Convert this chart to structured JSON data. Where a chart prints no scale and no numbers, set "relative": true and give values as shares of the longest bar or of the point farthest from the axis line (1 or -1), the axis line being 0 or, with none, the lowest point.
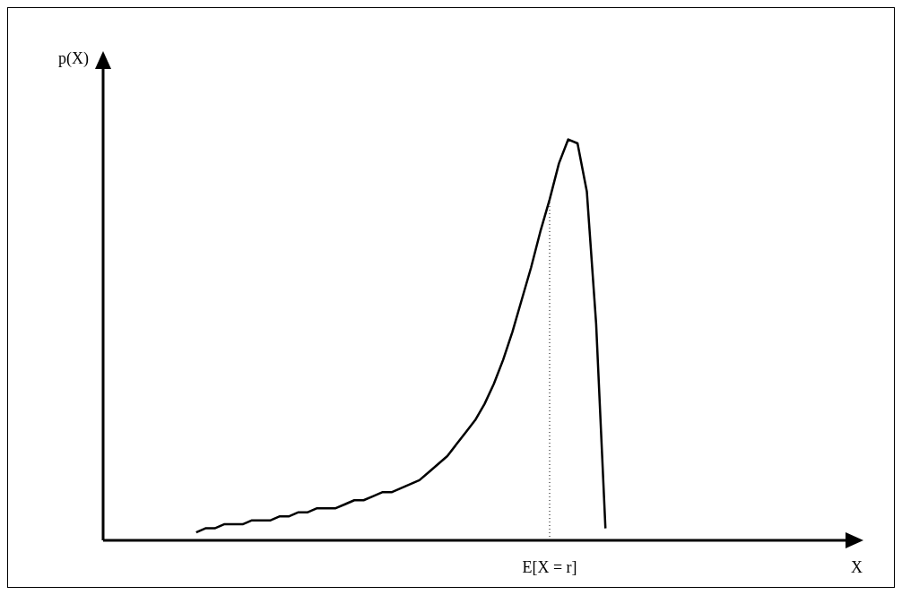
{
  "chart_data": {
    "type": "line",
    "relative": true,
    "xlabel": "X",
    "ylabel": "p(X)",
    "categories": [
      null,
      null,
      null,
      null,
      null,
      null,
      null,
      null,
      null,
      null,
      null,
      null,
      null,
      null,
      null,
      null,
      null,
      null,
      null,
      null,
      null,
      null,
      null,
      null,
      null,
      null,
      null,
      null,
      null,
      null,
      null,
      null,
      null,
      null,
      null,
      null,
      null,
      null,
      null,
      null,
      null,
      null,
      null,
      null,
      null,
      null,
      null,
      null,
      null,
      null,
      null,
      null,
      null,
      null,
      null,
      null,
      null,
      null,
      null,
      null,
      null,
      null,
      null,
      null,
      null,
      null,
      null,
      null,
      null,
      null,
      null,
      null,
      null,
      null,
      null,
      null,
      null,
      null,
      null,
      null,
      null
    ],
    "series": [
      {
        "color": "#000000",
        "values": [
          null,
          null,
          null,
          null,
          null,
          null,
          null,
          null,
          null,
          null,
          0.02,
          0.03,
          0.03,
          0.04,
          0.04,
          0.04,
          0.05,
          0.05,
          0.05,
          0.06,
          0.06,
          0.07,
          0.07,
          0.08,
          0.08,
          0.08,
          0.09,
          0.1,
          0.1,
          0.11,
          0.12,
          0.12,
          0.13,
          0.14,
          0.15,
          0.17,
          0.19,
          0.21,
          0.24,
          0.27,
          0.3,
          0.34,
          0.39,
          0.45,
          0.52,
          0.6,
          0.68,
          0.77,
          0.85,
          0.94,
          1,
          0.99,
          0.87,
          0.54,
          0.03,
          null,
          null,
          null,
          null,
          null,
          null,
          null,
          null,
          null,
          null,
          null,
          null,
          null,
          null,
          null,
          null,
          null,
          null,
          null,
          null,
          null,
          null,
          null,
          null,
          null,
          null
        ]
      }
    ],
    "annotations": [
      "E[X = r]"
    ],
    "marker": "none",
    "line_style": "solid"
  }
}
